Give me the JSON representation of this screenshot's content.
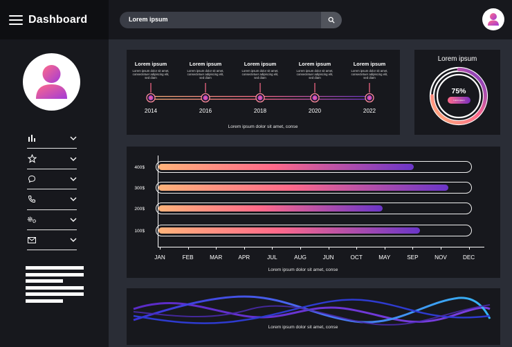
{
  "app": {
    "title": "Dashboard"
  },
  "search": {
    "value": "Lorem ipsum"
  },
  "sidebar": {
    "items": [
      {
        "icon": "bar-chart-icon"
      },
      {
        "icon": "star-icon"
      },
      {
        "icon": "chat-icon"
      },
      {
        "icon": "phone-icon"
      },
      {
        "icon": "gears-icon"
      },
      {
        "icon": "mail-icon"
      }
    ]
  },
  "timeline": {
    "events": [
      {
        "title": "Lorem ipsum",
        "desc1": "Lorem ipsum dolor sit amet,",
        "desc2": "consectetuer adipiscing elit,",
        "desc3": "sed diam",
        "year": "2014"
      },
      {
        "title": "Lorem ipsum",
        "desc1": "Lorem ipsum dolor sit amet,",
        "desc2": "consectetuer adipiscing elit,",
        "desc3": "sed diam",
        "year": "2016"
      },
      {
        "title": "Lorem ipsum",
        "desc1": "Lorem ipsum dolor sit amet,",
        "desc2": "consectetuer adipiscing elit,",
        "desc3": "sed diam",
        "year": "2018"
      },
      {
        "title": "Lorem ipsum",
        "desc1": "Lorem ipsum dolor sit amet,",
        "desc2": "consectetuer adipiscing elit,",
        "desc3": "sed diam",
        "year": "2020"
      },
      {
        "title": "Lorem ipsum",
        "desc1": "Lorem ipsum dolor sit amet,",
        "desc2": "consectetuer adipiscing elit,",
        "desc3": "sed diam",
        "year": "2022"
      }
    ],
    "caption": "Lorem ipsum dolor sit amet, conse"
  },
  "donut": {
    "title": "Lorem ipsum",
    "percent_label": "75%",
    "percent": 75,
    "pill": "Lorem ipsum"
  },
  "chart_data": {
    "type": "bar",
    "orientation": "horizontal-progress",
    "categories": [
      "400$",
      "300$",
      "200$",
      "100$"
    ],
    "values": [
      400,
      300,
      200,
      100
    ],
    "fill_fraction": [
      0.82,
      0.93,
      0.72,
      0.84
    ],
    "x_labels": [
      "JAN",
      "FEB",
      "MAR",
      "APR",
      "JUL",
      "AUG",
      "JUN",
      "OCT",
      "MAY",
      "SEP",
      "NOV",
      "DEC"
    ],
    "caption": "Lorem ipsum dolor sit amet, conse"
  },
  "wave": {
    "caption": "Lorem ipsum dolor sit amet, conse"
  },
  "colors": {
    "accent_orange": "#ffb37a",
    "accent_pink": "#ff6a8a",
    "accent_purple": "#6a35c8",
    "panel": "#17181d",
    "background": "#2a2d36"
  }
}
